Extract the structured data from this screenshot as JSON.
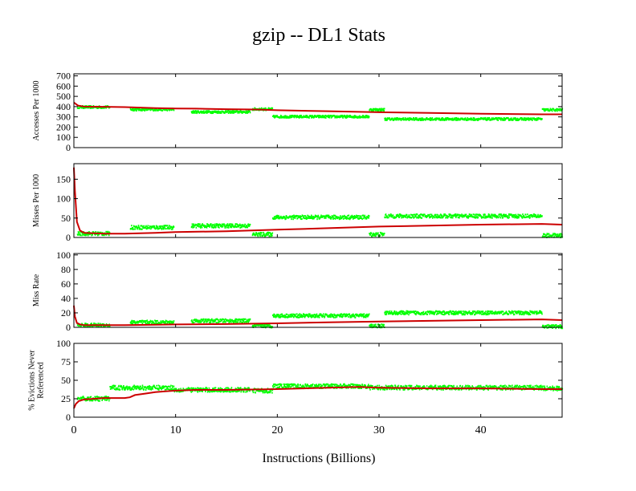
{
  "chart_data": {
    "type": "scatter",
    "title": "gzip -- DL1  Stats",
    "xlabel": "Instructions (Billions)",
    "xlim": [
      0,
      48
    ],
    "x_ticks": [
      0,
      10,
      20,
      30,
      40
    ],
    "colors": {
      "points": "#00ff00",
      "cumulative_line": "#cc0000",
      "axes": "#000000"
    },
    "panels": [
      {
        "name": "accesses",
        "ylabel": [
          "Accesses Per 1000"
        ],
        "ylim": [
          0,
          720
        ],
        "y_ticks": [
          0,
          100,
          200,
          300,
          400,
          500,
          600,
          700
        ],
        "series": [
          {
            "name": "interval",
            "style": "points",
            "jitter": 12,
            "segments": [
              [
                0.3,
                3.5,
                395
              ],
              [
                5.5,
                9.8,
                372
              ],
              [
                11.5,
                17.3,
                348
              ],
              [
                17.5,
                19.5,
                375
              ],
              [
                19.5,
                29,
                302
              ],
              [
                29,
                30.5,
                370
              ],
              [
                30.5,
                46,
                278
              ],
              [
                46,
                48,
                368
              ]
            ]
          },
          {
            "name": "cumulative",
            "style": "line",
            "x": [
              0,
              0.4,
              1,
              3,
              5,
              8,
              10,
              12,
              15,
              18,
              20,
              25,
              30,
              35,
              40,
              46,
              48
            ],
            "y": [
              440,
              410,
              400,
              398,
              395,
              385,
              382,
              380,
              375,
              372,
              365,
              355,
              345,
              338,
              330,
              325,
              325
            ]
          }
        ]
      },
      {
        "name": "misses",
        "ylabel": [
          "Misses Per 1000"
        ],
        "ylim": [
          0,
          190
        ],
        "y_ticks": [
          0,
          50,
          100,
          150
        ],
        "series": [
          {
            "name": "interval",
            "style": "points",
            "jitter": 5,
            "segments": [
              [
                0.3,
                3.5,
                10
              ],
              [
                5.5,
                9.8,
                26
              ],
              [
                11.5,
                17.3,
                30
              ],
              [
                17.5,
                19.5,
                8
              ],
              [
                19.5,
                29,
                52
              ],
              [
                29,
                30.5,
                8
              ],
              [
                30.5,
                46,
                55
              ],
              [
                46,
                48,
                5
              ]
            ]
          },
          {
            "name": "cumulative",
            "style": "line",
            "x": [
              0,
              0.1,
              0.3,
              0.6,
              1,
              2,
              3,
              5,
              8,
              10,
              15,
              20,
              25,
              30,
              40,
              46,
              48
            ],
            "y": [
              180,
              120,
              40,
              18,
              12,
              11,
              10,
              10,
              12,
              14,
              16,
              20,
              24,
              28,
              33,
              35,
              33
            ]
          }
        ]
      },
      {
        "name": "miss-rate",
        "ylabel": [
          "Miss Rate"
        ],
        "ylim": [
          0,
          102
        ],
        "y_ticks": [
          0,
          20,
          40,
          60,
          80,
          100
        ],
        "series": [
          {
            "name": "interval",
            "style": "points",
            "jitter": 2.5,
            "segments": [
              [
                0.3,
                3.5,
                3
              ],
              [
                5.5,
                9.8,
                7
              ],
              [
                11.5,
                17.3,
                9
              ],
              [
                17.5,
                19.5,
                2
              ],
              [
                19.5,
                29,
                16
              ],
              [
                29,
                30.5,
                2
              ],
              [
                30.5,
                46,
                20
              ],
              [
                46,
                48,
                1
              ]
            ]
          },
          {
            "name": "cumulative",
            "style": "line",
            "x": [
              0,
              0.1,
              0.3,
              0.6,
              1,
              3,
              5,
              8,
              10,
              15,
              20,
              25,
              30,
              40,
              46,
              48
            ],
            "y": [
              30,
              15,
              6,
              4,
              3,
              3,
              3,
              3.5,
              4,
              4.5,
              5.5,
              7,
              8,
              10,
              11,
              10
            ]
          }
        ]
      },
      {
        "name": "evictions",
        "ylabel": [
          "% Evictions Never",
          "Referenced"
        ],
        "ylim": [
          0,
          100
        ],
        "y_ticks": [
          0,
          25,
          50,
          75,
          100
        ],
        "series": [
          {
            "name": "interval",
            "style": "points",
            "jitter": 3,
            "segments": [
              [
                0.3,
                3.5,
                25
              ],
              [
                3.5,
                9.8,
                40
              ],
              [
                9.8,
                17.3,
                37
              ],
              [
                17.5,
                19.5,
                36
              ],
              [
                19.5,
                29,
                42
              ],
              [
                29,
                30.5,
                40
              ],
              [
                30.5,
                46,
                40
              ],
              [
                46,
                48,
                39
              ]
            ]
          },
          {
            "name": "cumulative",
            "style": "line",
            "x": [
              0,
              0.2,
              0.5,
              1,
              2,
              3,
              4,
              5,
              5.5,
              6,
              7,
              8,
              9,
              10,
              12,
              15,
              20,
              25,
              28,
              30,
              35,
              40,
              46,
              48
            ],
            "y": [
              12,
              18,
              22,
              24,
              25,
              26,
              26,
              26,
              27,
              30,
              32,
              34,
              35,
              36,
              37,
              37,
              38,
              40,
              41,
              40,
              39,
              39,
              38,
              38
            ]
          }
        ]
      }
    ]
  }
}
